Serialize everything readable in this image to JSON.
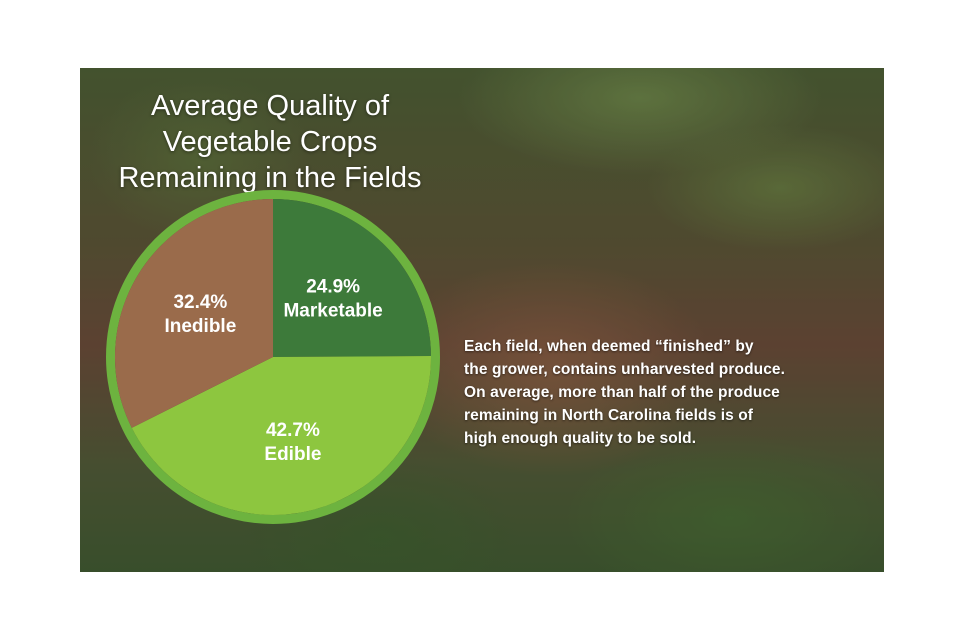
{
  "chart_data": {
    "type": "pie",
    "title": "Average Quality of Vegetable Crops Remaining in the Fields",
    "title_lines": [
      "Average Quality of",
      "Vegetable Crops",
      "Remaining in the Fields"
    ],
    "slices": [
      {
        "label": "Marketable",
        "value": 24.9,
        "value_text": "24.9%",
        "color": "#3d7a3a"
      },
      {
        "label": "Edible",
        "value": 42.7,
        "value_text": "42.7%",
        "color": "#8dc63f"
      },
      {
        "label": "Inedible",
        "value": 32.4,
        "value_text": "32.4%",
        "color": "#9a6b4b"
      }
    ],
    "start_angle_deg": 0,
    "rim_color": "#6db33f"
  },
  "caption_lines": [
    "Each field, when deemed “finished” by",
    "the grower, contains unharvested produce.",
    "On average, more than half of the produce",
    "remaining in North Carolina fields is of",
    "high enough quality to be sold."
  ]
}
